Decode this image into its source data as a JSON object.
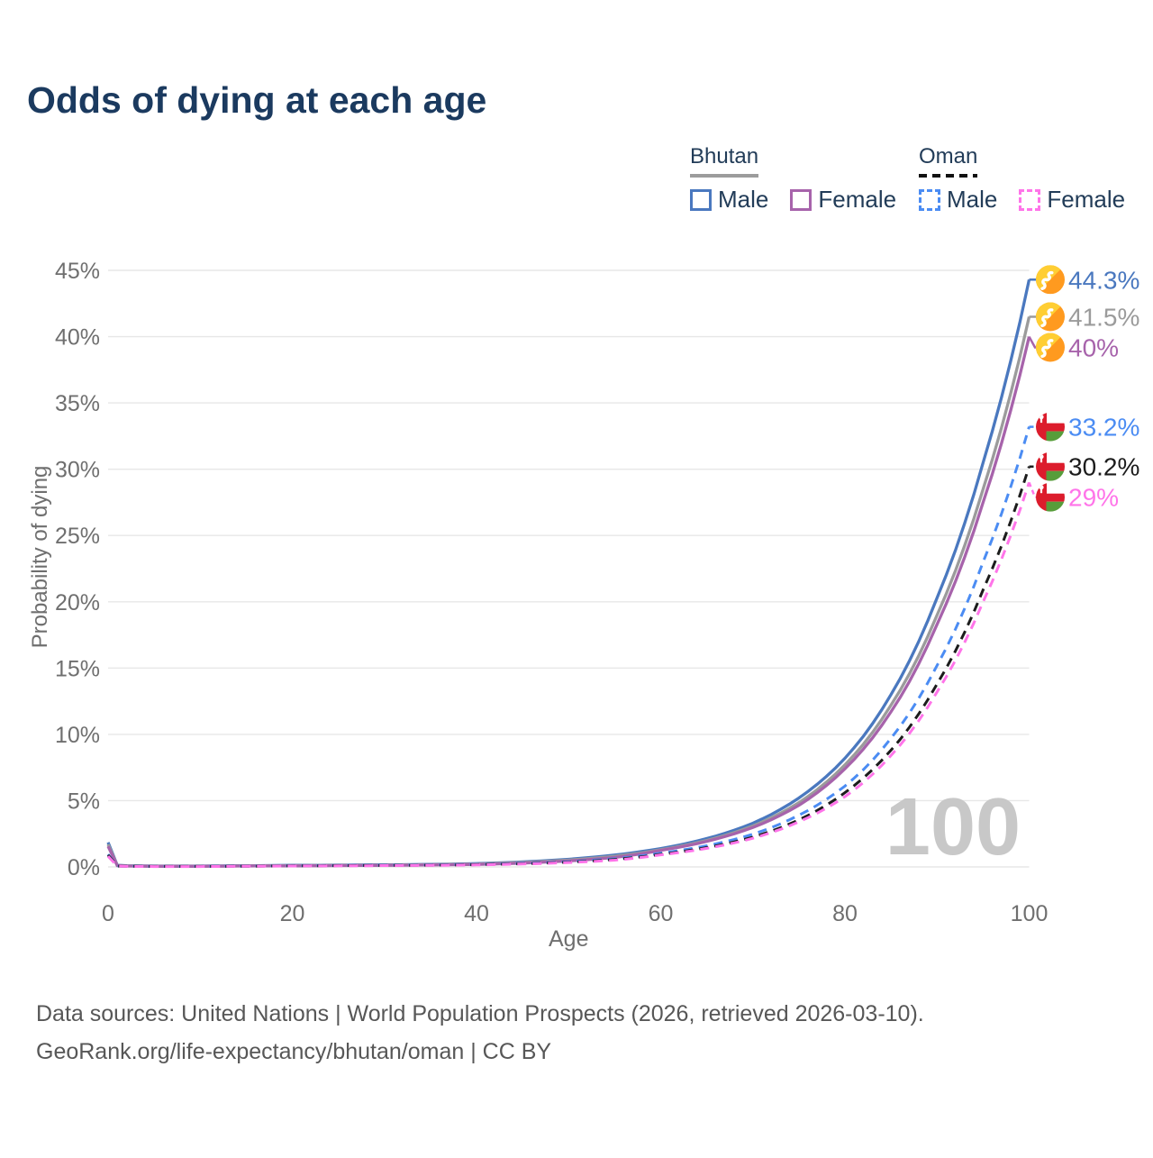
{
  "title": "Odds of dying at each age",
  "legend": {
    "groups": [
      {
        "country": "Bhutan",
        "style": "solid",
        "underline_series": 1,
        "items": [
          {
            "label": "Male",
            "series": 0
          },
          {
            "label": "Female",
            "series": 2
          }
        ]
      },
      {
        "country": "Oman",
        "style": "dashed",
        "underline_series": 4,
        "items": [
          {
            "label": "Male",
            "series": 3
          },
          {
            "label": "Female",
            "series": 5
          }
        ]
      }
    ]
  },
  "chart_data": {
    "type": "line",
    "title": "Odds of dying at each age",
    "xlabel": "Age",
    "ylabel": "Probability of dying",
    "xlim": [
      0,
      100
    ],
    "ylim": [
      0,
      45
    ],
    "x_ticks": [
      0,
      20,
      40,
      60,
      80,
      100
    ],
    "y_ticks": [
      0,
      5,
      10,
      15,
      20,
      25,
      30,
      35,
      40,
      45
    ],
    "y_tick_suffix": "%",
    "grid": "horizontal",
    "legend_position": "top-right",
    "watermark": "100",
    "series": [
      {
        "name": "Bhutan Male",
        "country": "Bhutan",
        "sex": "male",
        "color": "#4a78bf",
        "dash": false,
        "end_label": "44.3%",
        "points": [
          [
            0,
            1.85
          ],
          [
            1,
            0.12
          ],
          [
            2,
            0.09
          ],
          [
            5,
            0.07
          ],
          [
            10,
            0.07
          ],
          [
            15,
            0.09
          ],
          [
            20,
            0.12
          ],
          [
            25,
            0.14
          ],
          [
            30,
            0.16
          ],
          [
            35,
            0.19
          ],
          [
            40,
            0.25
          ],
          [
            45,
            0.38
          ],
          [
            50,
            0.58
          ],
          [
            55,
            0.9
          ],
          [
            60,
            1.39
          ],
          [
            65,
            2.14
          ],
          [
            70,
            3.3
          ],
          [
            75,
            5.2
          ],
          [
            80,
            8.2
          ],
          [
            85,
            13.0
          ],
          [
            90,
            20.3
          ],
          [
            95,
            30.5
          ],
          [
            100,
            44.3
          ]
        ]
      },
      {
        "name": "Bhutan",
        "country": "Bhutan",
        "sex": "both",
        "color": "#9b9b9b",
        "dash": false,
        "end_label": "41.5%",
        "points": [
          [
            0,
            1.7
          ],
          [
            1,
            0.11
          ],
          [
            2,
            0.08
          ],
          [
            5,
            0.06
          ],
          [
            10,
            0.06
          ],
          [
            15,
            0.08
          ],
          [
            20,
            0.1
          ],
          [
            25,
            0.12
          ],
          [
            30,
            0.14
          ],
          [
            35,
            0.17
          ],
          [
            40,
            0.22
          ],
          [
            45,
            0.34
          ],
          [
            50,
            0.52
          ],
          [
            55,
            0.81
          ],
          [
            60,
            1.3
          ],
          [
            65,
            2.0
          ],
          [
            70,
            3.09
          ],
          [
            75,
            4.85
          ],
          [
            80,
            7.7
          ],
          [
            85,
            12.2
          ],
          [
            90,
            19.0
          ],
          [
            95,
            28.5
          ],
          [
            100,
            41.5
          ]
        ]
      },
      {
        "name": "Bhutan Female",
        "country": "Bhutan",
        "sex": "female",
        "color": "#a763ab",
        "dash": false,
        "end_label": "40%",
        "points": [
          [
            0,
            1.55
          ],
          [
            1,
            0.1
          ],
          [
            2,
            0.07
          ],
          [
            5,
            0.05
          ],
          [
            10,
            0.05
          ],
          [
            15,
            0.07
          ],
          [
            20,
            0.08
          ],
          [
            25,
            0.1
          ],
          [
            30,
            0.12
          ],
          [
            35,
            0.15
          ],
          [
            40,
            0.19
          ],
          [
            45,
            0.29
          ],
          [
            50,
            0.45
          ],
          [
            55,
            0.72
          ],
          [
            60,
            1.25
          ],
          [
            65,
            1.93
          ],
          [
            70,
            2.98
          ],
          [
            75,
            4.65
          ],
          [
            80,
            7.4
          ],
          [
            85,
            11.7
          ],
          [
            90,
            18.3
          ],
          [
            95,
            27.5
          ],
          [
            100,
            40
          ]
        ]
      },
      {
        "name": "Oman Male",
        "country": "Oman",
        "sex": "male",
        "color": "#4b8cf3",
        "dash": true,
        "end_label": "33.2%",
        "points": [
          [
            0,
            0.95
          ],
          [
            1,
            0.07
          ],
          [
            2,
            0.05
          ],
          [
            5,
            0.04
          ],
          [
            10,
            0.04
          ],
          [
            15,
            0.06
          ],
          [
            20,
            0.09
          ],
          [
            25,
            0.11
          ],
          [
            30,
            0.13
          ],
          [
            35,
            0.15
          ],
          [
            40,
            0.19
          ],
          [
            45,
            0.27
          ],
          [
            50,
            0.4
          ],
          [
            55,
            0.62
          ],
          [
            60,
            1.04
          ],
          [
            65,
            1.6
          ],
          [
            70,
            2.47
          ],
          [
            75,
            3.9
          ],
          [
            80,
            6.1
          ],
          [
            85,
            9.7
          ],
          [
            90,
            15.2
          ],
          [
            95,
            23.0
          ],
          [
            100,
            33.2
          ]
        ]
      },
      {
        "name": "Oman",
        "country": "Oman",
        "sex": "both",
        "color": "#1c1c1c",
        "dash": true,
        "end_label": "30.2%",
        "points": [
          [
            0,
            0.9
          ],
          [
            1,
            0.06
          ],
          [
            2,
            0.05
          ],
          [
            5,
            0.04
          ],
          [
            10,
            0.04
          ],
          [
            15,
            0.05
          ],
          [
            20,
            0.08
          ],
          [
            25,
            0.1
          ],
          [
            30,
            0.11
          ],
          [
            35,
            0.13
          ],
          [
            40,
            0.17
          ],
          [
            45,
            0.24
          ],
          [
            50,
            0.36
          ],
          [
            55,
            0.56
          ],
          [
            60,
            0.95
          ],
          [
            65,
            1.46
          ],
          [
            70,
            2.25
          ],
          [
            75,
            3.55
          ],
          [
            80,
            5.6
          ],
          [
            85,
            8.8
          ],
          [
            90,
            13.8
          ],
          [
            95,
            20.9
          ],
          [
            100,
            30.2
          ]
        ]
      },
      {
        "name": "Oman Female",
        "country": "Oman",
        "sex": "female",
        "color": "#ff74e9",
        "dash": true,
        "end_label": "29%",
        "points": [
          [
            0,
            0.8
          ],
          [
            1,
            0.06
          ],
          [
            2,
            0.04
          ],
          [
            5,
            0.03
          ],
          [
            10,
            0.03
          ],
          [
            15,
            0.05
          ],
          [
            20,
            0.07
          ],
          [
            25,
            0.08
          ],
          [
            30,
            0.1
          ],
          [
            35,
            0.12
          ],
          [
            40,
            0.15
          ],
          [
            45,
            0.22
          ],
          [
            50,
            0.33
          ],
          [
            55,
            0.51
          ],
          [
            60,
            0.91
          ],
          [
            65,
            1.4
          ],
          [
            70,
            2.16
          ],
          [
            75,
            3.4
          ],
          [
            80,
            5.3
          ],
          [
            85,
            8.4
          ],
          [
            90,
            13.2
          ],
          [
            95,
            20.0
          ],
          [
            100,
            29
          ]
        ]
      }
    ]
  },
  "flags": {
    "bhutan": {
      "yellow": "#ffce33",
      "orange": "#ff9a1f",
      "dragon": "#ffffff"
    },
    "oman": {
      "red": "#dc1c2c",
      "green": "#579d3a",
      "white": "#ffffff"
    }
  },
  "footer": {
    "line1": "Data sources: United Nations | World Population Prospects (2026, retrieved 2026-03-10).",
    "line2": "GeoRank.org/life-expectancy/bhutan/oman | CC BY"
  },
  "colors": {
    "title_text": "#1b3a5f",
    "legend_text": "#223c58",
    "axis_text": "#6f6f6f",
    "grid": "#e7e7e7",
    "watermark": "#c8c8c8",
    "footer_text": "#575757",
    "underline_solid": "#9c9c9c",
    "underline_dashed": "#111111"
  }
}
